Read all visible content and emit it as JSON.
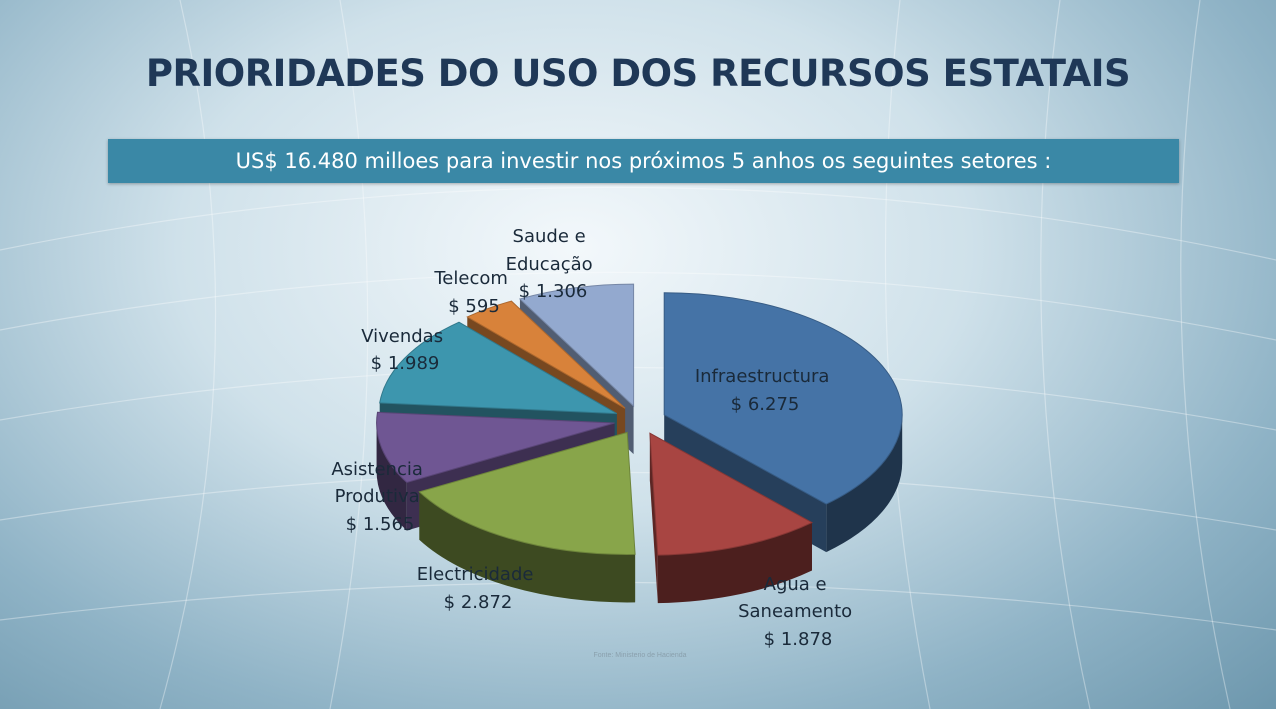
{
  "title": "PRIORIDADES DO USO DOS RECURSOS ESTATAIS",
  "subtitle": "US$ 16.480 milloes para investir nos próximos 5 anhos os seguintes setores :",
  "source": "Fonte: Ministerio de Hacienda",
  "colors": {
    "title": "#1f3857",
    "subtitle_bar": "#3a88a6"
  },
  "chart_data": {
    "type": "pie",
    "title": "",
    "slices": [
      {
        "name": "Infraestructura",
        "value": 6275,
        "value_label": "$ 6.275",
        "color": "#4573a6"
      },
      {
        "name": "Agua e Saneamento",
        "value": 1878,
        "value_label": "$ 1.878",
        "color": "#a84542"
      },
      {
        "name": "Electricidade",
        "value": 2872,
        "value_label": "$ 2.872",
        "color": "#88a54a"
      },
      {
        "name": "Asistencia Produtiva",
        "value": 1565,
        "value_label": "$ 1.565",
        "color": "#6f5693"
      },
      {
        "name": "Vivendas",
        "value": 1989,
        "value_label": "$ 1.989",
        "color": "#3d96ae"
      },
      {
        "name": "Telecom",
        "value": 595,
        "value_label": "$ 595",
        "color": "#d8823a"
      },
      {
        "name": "Saude e Educação",
        "value": 1306,
        "value_label": "$ 1.306",
        "color": "#93a9cf"
      }
    ]
  }
}
